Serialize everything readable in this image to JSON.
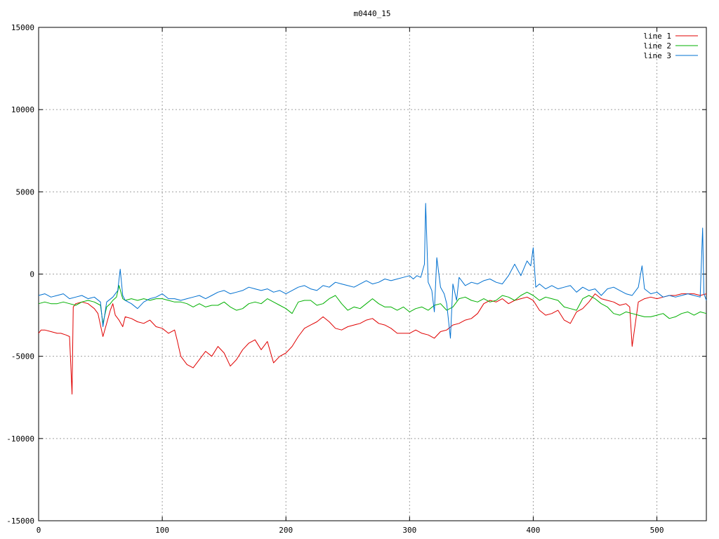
{
  "chart_data": {
    "type": "line",
    "title": "m0440_15",
    "xlabel": "",
    "ylabel": "",
    "xlim": [
      0,
      540
    ],
    "ylim": [
      -15000,
      15000
    ],
    "x_ticks": [
      0,
      100,
      200,
      300,
      400,
      500
    ],
    "y_ticks": [
      -15000,
      -10000,
      -5000,
      0,
      5000,
      10000,
      15000
    ],
    "grid": true,
    "legend_position": "top-right",
    "series": [
      {
        "name": "line 1",
        "color": "#e00000",
        "x": [
          0,
          2,
          5,
          10,
          15,
          18,
          22,
          25,
          26,
          27,
          28,
          30,
          35,
          40,
          45,
          48,
          52,
          55,
          58,
          60,
          62,
          65,
          68,
          70,
          75,
          80,
          85,
          90,
          95,
          100,
          105,
          110,
          112,
          115,
          120,
          125,
          130,
          135,
          140,
          145,
          150,
          155,
          160,
          165,
          170,
          175,
          180,
          185,
          190,
          195,
          200,
          205,
          210,
          215,
          220,
          225,
          230,
          235,
          240,
          245,
          250,
          255,
          260,
          265,
          270,
          275,
          280,
          285,
          290,
          295,
          300,
          305,
          310,
          315,
          320,
          325,
          330,
          335,
          340,
          345,
          350,
          355,
          360,
          365,
          370,
          375,
          380,
          385,
          390,
          395,
          400,
          405,
          410,
          415,
          420,
          425,
          430,
          435,
          440,
          445,
          450,
          455,
          460,
          465,
          470,
          475,
          478,
          480,
          485,
          490,
          495,
          500,
          505,
          510,
          515,
          520,
          525,
          530,
          535,
          540
        ],
        "values": [
          -3600,
          -3400,
          -3400,
          -3500,
          -3600,
          -3600,
          -3700,
          -3800,
          -5500,
          -7300,
          -2000,
          -1800,
          -1700,
          -1800,
          -2100,
          -2400,
          -3800,
          -3000,
          -2200,
          -1800,
          -2500,
          -2800,
          -3200,
          -2600,
          -2700,
          -2900,
          -3000,
          -2800,
          -3200,
          -3300,
          -3600,
          -3400,
          -4000,
          -5000,
          -5500,
          -5700,
          -5200,
          -4700,
          -5000,
          -4400,
          -4800,
          -5600,
          -5200,
          -4600,
          -4200,
          -4000,
          -4600,
          -4100,
          -5400,
          -5000,
          -4800,
          -4400,
          -3800,
          -3300,
          -3100,
          -2900,
          -2600,
          -2900,
          -3300,
          -3400,
          -3200,
          -3100,
          -3000,
          -2800,
          -2700,
          -3000,
          -3100,
          -3300,
          -3600,
          -3600,
          -3600,
          -3400,
          -3600,
          -3700,
          -3900,
          -3500,
          -3400,
          -3100,
          -3000,
          -2800,
          -2700,
          -2400,
          -1800,
          -1600,
          -1700,
          -1500,
          -1800,
          -1600,
          -1500,
          -1400,
          -1600,
          -2200,
          -2500,
          -2400,
          -2200,
          -2800,
          -3000,
          -2300,
          -2100,
          -1700,
          -1200,
          -1500,
          -1600,
          -1700,
          -1900,
          -1800,
          -2000,
          -4400,
          -1700,
          -1500,
          -1400,
          -1500,
          -1400,
          -1300,
          -1300,
          -1200,
          -1200,
          -1200,
          -1300,
          -1200
        ]
      },
      {
        "name": "line 2",
        "color": "#00b000",
        "x": [
          0,
          5,
          10,
          15,
          20,
          25,
          30,
          35,
          40,
          45,
          50,
          52,
          55,
          58,
          60,
          63,
          65,
          68,
          70,
          75,
          80,
          85,
          90,
          95,
          100,
          105,
          110,
          115,
          120,
          125,
          130,
          135,
          140,
          145,
          150,
          155,
          160,
          165,
          170,
          175,
          180,
          185,
          190,
          195,
          200,
          205,
          210,
          215,
          220,
          225,
          230,
          235,
          240,
          245,
          250,
          255,
          260,
          265,
          270,
          275,
          280,
          285,
          290,
          295,
          300,
          305,
          310,
          315,
          320,
          325,
          330,
          335,
          340,
          345,
          350,
          355,
          360,
          365,
          370,
          375,
          380,
          385,
          390,
          395,
          400,
          405,
          410,
          415,
          420,
          425,
          430,
          435,
          440,
          445,
          450,
          455,
          460,
          465,
          470,
          475,
          480,
          485,
          490,
          495,
          500,
          505,
          510,
          515,
          520,
          525,
          530,
          535,
          540
        ],
        "values": [
          -1800,
          -1700,
          -1800,
          -1800,
          -1700,
          -1800,
          -1900,
          -1700,
          -1600,
          -1700,
          -1900,
          -3000,
          -2000,
          -1800,
          -1600,
          -1400,
          -700,
          -1500,
          -1600,
          -1500,
          -1600,
          -1500,
          -1600,
          -1500,
          -1500,
          -1600,
          -1700,
          -1700,
          -1800,
          -2000,
          -1800,
          -2000,
          -1900,
          -1900,
          -1700,
          -2000,
          -2200,
          -2100,
          -1800,
          -1700,
          -1800,
          -1500,
          -1700,
          -1900,
          -2100,
          -2400,
          -1700,
          -1600,
          -1600,
          -1900,
          -1800,
          -1500,
          -1300,
          -1800,
          -2200,
          -2000,
          -2100,
          -1800,
          -1500,
          -1800,
          -2000,
          -2000,
          -2200,
          -2000,
          -2300,
          -2100,
          -2000,
          -2200,
          -1900,
          -1800,
          -2200,
          -2000,
          -1500,
          -1400,
          -1600,
          -1700,
          -1500,
          -1700,
          -1600,
          -1300,
          -1400,
          -1600,
          -1300,
          -1100,
          -1300,
          -1600,
          -1400,
          -1500,
          -1600,
          -2000,
          -2100,
          -2200,
          -1500,
          -1300,
          -1500,
          -1800,
          -2000,
          -2400,
          -2500,
          -2300,
          -2400,
          -2500,
          -2600,
          -2600,
          -2500,
          -2400,
          -2700,
          -2600,
          -2400,
          -2300,
          -2500,
          -2300,
          -2400
        ]
      },
      {
        "name": "line 3",
        "color": "#0070d0",
        "x": [
          0,
          5,
          10,
          15,
          20,
          25,
          30,
          35,
          40,
          45,
          50,
          52,
          55,
          60,
          64,
          66,
          68,
          70,
          75,
          80,
          85,
          90,
          95,
          100,
          105,
          110,
          115,
          120,
          125,
          130,
          135,
          140,
          145,
          150,
          155,
          160,
          165,
          170,
          175,
          180,
          185,
          190,
          195,
          200,
          205,
          210,
          215,
          220,
          225,
          230,
          235,
          240,
          245,
          250,
          255,
          260,
          265,
          270,
          275,
          280,
          285,
          290,
          295,
          300,
          303,
          306,
          309,
          312,
          313,
          315,
          318,
          320,
          322,
          325,
          328,
          330,
          333,
          335,
          338,
          340,
          345,
          350,
          355,
          360,
          365,
          370,
          375,
          380,
          385,
          390,
          395,
          398,
          400,
          402,
          405,
          410,
          415,
          420,
          425,
          430,
          435,
          440,
          445,
          450,
          455,
          460,
          465,
          470,
          475,
          480,
          485,
          488,
          490,
          495,
          500,
          505,
          510,
          515,
          520,
          525,
          530,
          535,
          537,
          538,
          540
        ],
        "values": [
          -1300,
          -1200,
          -1400,
          -1300,
          -1200,
          -1500,
          -1400,
          -1300,
          -1500,
          -1400,
          -1700,
          -3200,
          -1700,
          -1400,
          -1000,
          300,
          -1300,
          -1600,
          -1800,
          -2100,
          -1700,
          -1500,
          -1400,
          -1200,
          -1500,
          -1500,
          -1600,
          -1500,
          -1400,
          -1300,
          -1500,
          -1300,
          -1100,
          -1000,
          -1200,
          -1100,
          -1000,
          -800,
          -900,
          -1000,
          -900,
          -1100,
          -1000,
          -1200,
          -1000,
          -800,
          -700,
          -900,
          -1000,
          -700,
          -800,
          -500,
          -600,
          -700,
          -800,
          -600,
          -400,
          -600,
          -500,
          -300,
          -400,
          -300,
          -200,
          -100,
          -300,
          -100,
          -200,
          600,
          4300,
          -500,
          -1000,
          -2300,
          1000,
          -800,
          -1200,
          -1800,
          -3900,
          -600,
          -1600,
          -200,
          -700,
          -500,
          -600,
          -400,
          -300,
          -500,
          -600,
          -100,
          600,
          -100,
          800,
          500,
          1600,
          -800,
          -600,
          -900,
          -700,
          -900,
          -800,
          -700,
          -1100,
          -800,
          -1000,
          -900,
          -1300,
          -900,
          -800,
          -1000,
          -1200,
          -1300,
          -800,
          500,
          -900,
          -1200,
          -1100,
          -1400,
          -1300,
          -1400,
          -1300,
          -1200,
          -1300,
          -1400,
          2800,
          -1200,
          -1600
        ]
      }
    ]
  }
}
